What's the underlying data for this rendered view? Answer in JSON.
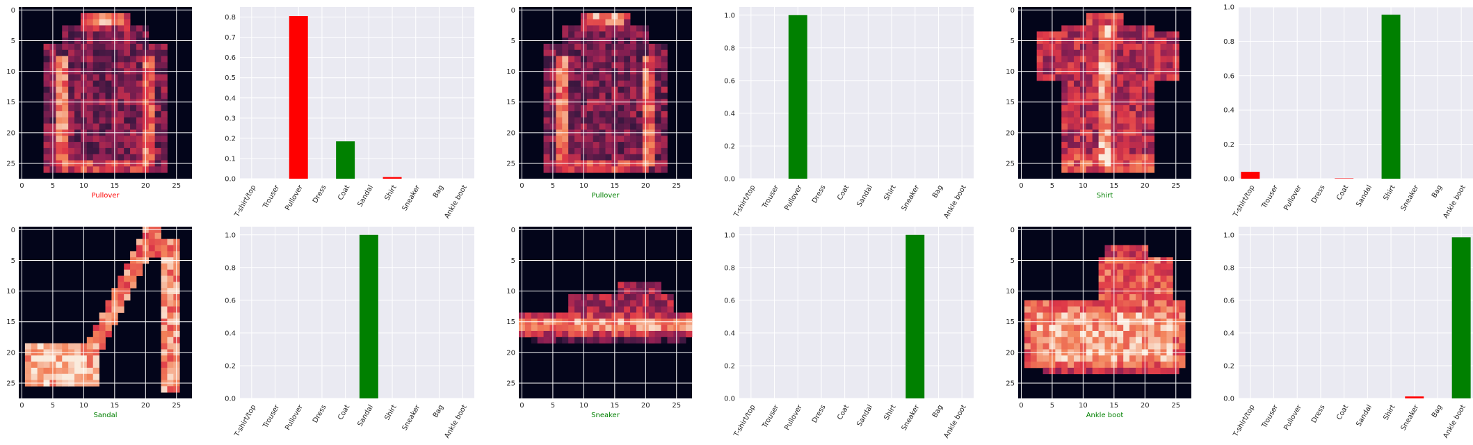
{
  "classes": [
    "T-shirt/top",
    "Trouser",
    "Pullover",
    "Dress",
    "Coat",
    "Sandal",
    "Shirt",
    "Sneaker",
    "Bag",
    "Ankle boot"
  ],
  "colors": {
    "correct": "#008000",
    "wrong": "#ff0000",
    "plot_bg": "#eaeaf2",
    "grid": "#ffffff",
    "tick_text": "#262626"
  },
  "chart_data": [
    {
      "type": "heatmap",
      "image_label": "Pullover",
      "label_color": "wrong",
      "xticks": [
        "0",
        "5",
        "10",
        "15",
        "20",
        "25"
      ],
      "yticks": [
        "0",
        "5",
        "10",
        "15",
        "20",
        "25"
      ],
      "xlim": [
        0,
        27
      ],
      "ylim": [
        27,
        0
      ],
      "image_subject": "pullover"
    },
    {
      "type": "bar",
      "categories": [
        "T-shirt/top",
        "Trouser",
        "Pullover",
        "Dress",
        "Coat",
        "Sandal",
        "Shirt",
        "Sneaker",
        "Bag",
        "Ankle boot"
      ],
      "values": [
        0,
        0,
        0.805,
        0,
        0.185,
        0,
        0.008,
        0,
        0,
        0
      ],
      "colors": [
        "#808080",
        "#808080",
        "#ff0000",
        "#808080",
        "#008000",
        "#808080",
        "#ff0000",
        "#808080",
        "#808080",
        "#808080"
      ],
      "ylim": [
        0,
        0.85
      ],
      "yticks": [
        "0.0",
        "0.1",
        "0.2",
        "0.3",
        "0.4",
        "0.5",
        "0.6",
        "0.7",
        "0.8"
      ],
      "tick_values": [
        0,
        0.1,
        0.2,
        0.3,
        0.4,
        0.5,
        0.6,
        0.7,
        0.8
      ],
      "xlabel": "",
      "ylabel": ""
    },
    {
      "type": "heatmap",
      "image_label": "Pullover",
      "label_color": "correct",
      "xticks": [
        "0",
        "5",
        "10",
        "15",
        "20",
        "25"
      ],
      "yticks": [
        "0",
        "5",
        "10",
        "15",
        "20",
        "25"
      ],
      "xlim": [
        0,
        27
      ],
      "ylim": [
        27,
        0
      ],
      "image_subject": "pullover"
    },
    {
      "type": "bar",
      "categories": [
        "T-shirt/top",
        "Trouser",
        "Pullover",
        "Dress",
        "Coat",
        "Sandal",
        "Shirt",
        "Sneaker",
        "Bag",
        "Ankle boot"
      ],
      "values": [
        0,
        0,
        1.0,
        0,
        0,
        0,
        0,
        0,
        0,
        0
      ],
      "colors": [
        "#808080",
        "#808080",
        "#008000",
        "#808080",
        "#808080",
        "#808080",
        "#808080",
        "#808080",
        "#808080",
        "#808080"
      ],
      "ylim": [
        0,
        1.05
      ],
      "yticks": [
        "0.0",
        "0.2",
        "0.4",
        "0.6",
        "0.8",
        "1.0"
      ],
      "tick_values": [
        0,
        0.2,
        0.4,
        0.6,
        0.8,
        1.0
      ],
      "xlabel": "",
      "ylabel": ""
    },
    {
      "type": "heatmap",
      "image_label": "Shirt",
      "label_color": "correct",
      "xticks": [
        "0",
        "5",
        "10",
        "15",
        "20",
        "25"
      ],
      "yticks": [
        "0",
        "5",
        "10",
        "15",
        "20",
        "25"
      ],
      "xlim": [
        0,
        27
      ],
      "ylim": [
        27,
        0
      ],
      "image_subject": "shirt"
    },
    {
      "type": "bar",
      "categories": [
        "T-shirt/top",
        "Trouser",
        "Pullover",
        "Dress",
        "Coat",
        "Sandal",
        "Shirt",
        "Sneaker",
        "Bag",
        "Ankle boot"
      ],
      "values": [
        0.04,
        0,
        0,
        0,
        0.002,
        0,
        0.955,
        0,
        0,
        0
      ],
      "colors": [
        "#ff0000",
        "#808080",
        "#808080",
        "#808080",
        "#ff0000",
        "#808080",
        "#008000",
        "#808080",
        "#808080",
        "#808080"
      ],
      "ylim": [
        0,
        1.0
      ],
      "yticks": [
        "0.0",
        "0.2",
        "0.4",
        "0.6",
        "0.8",
        "1.0"
      ],
      "tick_values": [
        0,
        0.2,
        0.4,
        0.6,
        0.8,
        1.0
      ],
      "xlabel": "",
      "ylabel": ""
    },
    {
      "type": "heatmap",
      "image_label": "Sandal",
      "label_color": "correct",
      "xticks": [
        "0",
        "5",
        "10",
        "15",
        "20",
        "25"
      ],
      "yticks": [
        "0",
        "5",
        "10",
        "15",
        "20",
        "25"
      ],
      "xlim": [
        0,
        27
      ],
      "ylim": [
        27,
        0
      ],
      "image_subject": "sandal"
    },
    {
      "type": "bar",
      "categories": [
        "T-shirt/top",
        "Trouser",
        "Pullover",
        "Dress",
        "Coat",
        "Sandal",
        "Shirt",
        "Sneaker",
        "Bag",
        "Ankle boot"
      ],
      "values": [
        0,
        0,
        0,
        0,
        0,
        1.0,
        0,
        0,
        0,
        0
      ],
      "colors": [
        "#808080",
        "#808080",
        "#808080",
        "#808080",
        "#808080",
        "#008000",
        "#808080",
        "#808080",
        "#808080",
        "#808080"
      ],
      "ylim": [
        0,
        1.05
      ],
      "yticks": [
        "0.0",
        "0.2",
        "0.4",
        "0.6",
        "0.8",
        "1.0"
      ],
      "tick_values": [
        0,
        0.2,
        0.4,
        0.6,
        0.8,
        1.0
      ],
      "xlabel": "",
      "ylabel": ""
    },
    {
      "type": "heatmap",
      "image_label": "Sneaker",
      "label_color": "correct",
      "xticks": [
        "0",
        "5",
        "10",
        "15",
        "20",
        "25"
      ],
      "yticks": [
        "0",
        "5",
        "10",
        "15",
        "20",
        "25"
      ],
      "xlim": [
        0,
        27
      ],
      "ylim": [
        27,
        0
      ],
      "image_subject": "sneaker"
    },
    {
      "type": "bar",
      "categories": [
        "T-shirt/top",
        "Trouser",
        "Pullover",
        "Dress",
        "Coat",
        "Sandal",
        "Shirt",
        "Sneaker",
        "Bag",
        "Ankle boot"
      ],
      "values": [
        0,
        0,
        0,
        0,
        0,
        0,
        0,
        1.0,
        0,
        0
      ],
      "colors": [
        "#808080",
        "#808080",
        "#808080",
        "#808080",
        "#808080",
        "#808080",
        "#808080",
        "#008000",
        "#808080",
        "#808080"
      ],
      "ylim": [
        0,
        1.05
      ],
      "yticks": [
        "0.0",
        "0.2",
        "0.4",
        "0.6",
        "0.8",
        "1.0"
      ],
      "tick_values": [
        0,
        0.2,
        0.4,
        0.6,
        0.8,
        1.0
      ],
      "xlabel": "",
      "ylabel": ""
    },
    {
      "type": "heatmap",
      "image_label": "Ankle boot",
      "label_color": "correct",
      "xticks": [
        "0",
        "5",
        "10",
        "15",
        "20",
        "25"
      ],
      "yticks": [
        "0",
        "5",
        "10",
        "15",
        "20",
        "25"
      ],
      "xlim": [
        0,
        27
      ],
      "ylim": [
        27,
        0
      ],
      "image_subject": "ankle boot"
    },
    {
      "type": "bar",
      "categories": [
        "T-shirt/top",
        "Trouser",
        "Pullover",
        "Dress",
        "Coat",
        "Sandal",
        "Shirt",
        "Sneaker",
        "Bag",
        "Ankle boot"
      ],
      "values": [
        0,
        0,
        0,
        0,
        0,
        0,
        0,
        0.012,
        0,
        0.985
      ],
      "colors": [
        "#808080",
        "#808080",
        "#808080",
        "#808080",
        "#808080",
        "#808080",
        "#808080",
        "#ff0000",
        "#808080",
        "#008000"
      ],
      "ylim": [
        0,
        1.05
      ],
      "yticks": [
        "0.0",
        "0.2",
        "0.4",
        "0.6",
        "0.8",
        "1.0"
      ],
      "tick_values": [
        0,
        0.2,
        0.4,
        0.6,
        0.8,
        1.0
      ],
      "xlabel": "",
      "ylabel": ""
    }
  ]
}
